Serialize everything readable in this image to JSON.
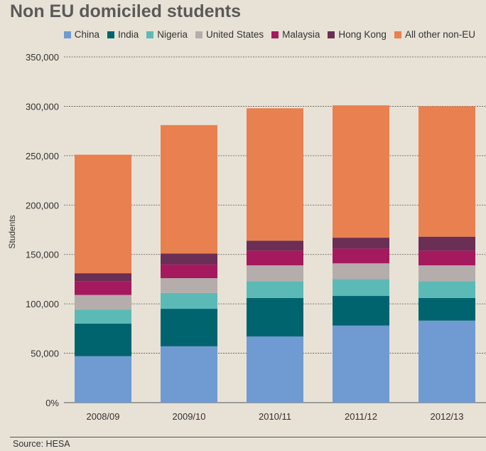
{
  "chart_data": {
    "type": "bar",
    "stacked": true,
    "title": "Non EU domiciled students",
    "ylabel": "Students",
    "xlabel": "",
    "ylim": [
      0,
      350000
    ],
    "yticks": [
      0,
      50000,
      100000,
      150000,
      200000,
      250000,
      300000,
      350000
    ],
    "ytick_labels": [
      "0%",
      "50,000",
      "100,000",
      "150,000",
      "200,000",
      "250,000",
      "300,000",
      "350,000"
    ],
    "categories": [
      "2008/09",
      "2009/10",
      "2010/11",
      "2011/12",
      "2012/13"
    ],
    "series": [
      {
        "name": "China",
        "color": "#6f9bd2",
        "values": [
          47000,
          57000,
          67000,
          78000,
          83000
        ]
      },
      {
        "name": "India",
        "color": "#00646e",
        "values": [
          33000,
          38000,
          39000,
          30000,
          23000
        ]
      },
      {
        "name": "Nigeria",
        "color": "#5cbab6",
        "values": [
          14000,
          16000,
          17000,
          17000,
          17000
        ]
      },
      {
        "name": "United States",
        "color": "#b5adab",
        "values": [
          15000,
          15000,
          16000,
          16000,
          16000
        ]
      },
      {
        "name": "Malaysia",
        "color": "#a5195f",
        "values": [
          14000,
          14000,
          15000,
          15000,
          15000
        ]
      },
      {
        "name": "Hong Kong",
        "color": "#6b2e54",
        "values": [
          8000,
          11000,
          10000,
          11000,
          14000
        ]
      },
      {
        "name": "All other non-EU",
        "color": "#e98050",
        "values": [
          120000,
          130000,
          134000,
          134000,
          132000
        ]
      }
    ],
    "grid": true,
    "legend": "top"
  },
  "source": "Source: HESA"
}
